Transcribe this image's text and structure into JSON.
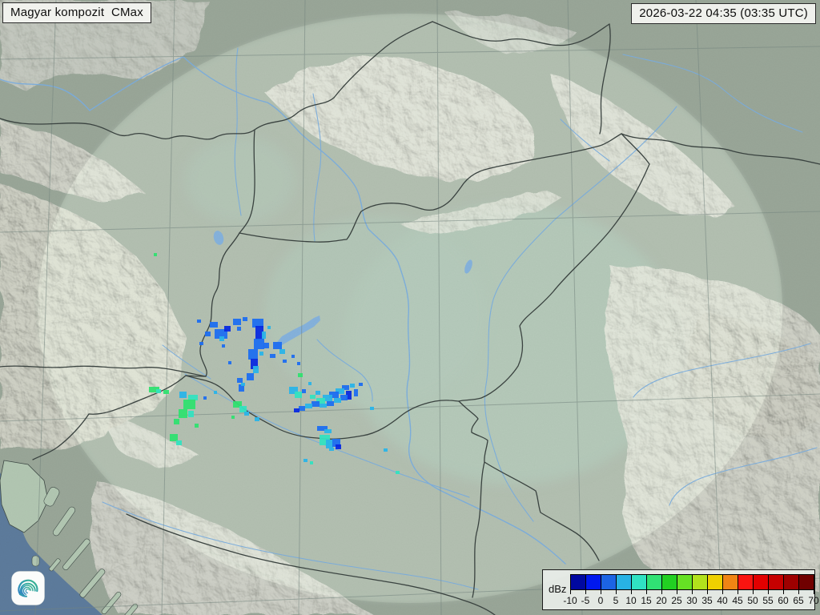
{
  "header": {
    "product_label": "Magyar kompozit  CMax",
    "timestamp_label": "2026-03-22 04:35 (03:35 UTC)"
  },
  "legend": {
    "unit": "dBz",
    "tick_labels": [
      "-10",
      "-5",
      "0",
      "5",
      "10",
      "15",
      "20",
      "25",
      "30",
      "35",
      "40",
      "45",
      "50",
      "55",
      "60",
      "65",
      "70"
    ],
    "colors": [
      "#0008a0",
      "#0018ee",
      "#1c64e4",
      "#28b2e4",
      "#30e2c2",
      "#30e274",
      "#22d022",
      "#66e224",
      "#b2e21c",
      "#eed000",
      "#f08414",
      "#fa1410",
      "#e20000",
      "#c60000",
      "#9e0000",
      "#700000"
    ]
  },
  "branding": {
    "logo_name": "hungaromet-spiral-logo"
  },
  "map_colors": {
    "land_outer": "#a6b2a4",
    "land_inner_tint": "#d6e9d8",
    "outside_shade": "#49544b",
    "plain": "#a9c2b2",
    "mountain": "#e2e1d4",
    "sea": "#5d7b9c",
    "coast_land": "#b2c7b2",
    "lake": "#85b2dc",
    "river": "#7aadde",
    "border": "#3a4340",
    "graticule": "#75867f"
  },
  "radar_echoes": {
    "palette": {
      "b1": "#0a2ae0",
      "b2": "#1e6ef0",
      "c1": "#2ab4e8",
      "t": "#34e2c0",
      "g": "#30e070"
    },
    "cells": [
      [
        246,
        399,
        5,
        4,
        "b2"
      ],
      [
        262,
        402,
        10,
        7,
        "b2"
      ],
      [
        256,
        414,
        7,
        6,
        "b2"
      ],
      [
        268,
        411,
        16,
        12,
        "b2"
      ],
      [
        280,
        407,
        8,
        7,
        "b1"
      ],
      [
        274,
        420,
        6,
        6,
        "c1"
      ],
      [
        291,
        398,
        10,
        8,
        "b2"
      ],
      [
        303,
        396,
        6,
        5,
        "b2"
      ],
      [
        296,
        408,
        5,
        5,
        "b2"
      ],
      [
        249,
        427,
        5,
        4,
        "b2"
      ],
      [
        277,
        430,
        4,
        4,
        "b2"
      ],
      [
        315,
        398,
        14,
        11,
        "b2"
      ],
      [
        319,
        407,
        10,
        17,
        "b1"
      ],
      [
        327,
        414,
        5,
        9,
        "c1"
      ],
      [
        317,
        423,
        13,
        13,
        "b2"
      ],
      [
        329,
        428,
        7,
        7,
        "b2"
      ],
      [
        334,
        407,
        4,
        4,
        "c1"
      ],
      [
        341,
        427,
        11,
        9,
        "b2"
      ],
      [
        349,
        436,
        7,
        6,
        "c1"
      ],
      [
        337,
        442,
        7,
        5,
        "b2"
      ],
      [
        353,
        449,
        5,
        4,
        "b2"
      ],
      [
        324,
        439,
        5,
        5,
        "c1"
      ],
      [
        310,
        436,
        12,
        13,
        "b2"
      ],
      [
        313,
        448,
        9,
        13,
        "b1"
      ],
      [
        316,
        457,
        7,
        9,
        "c1"
      ],
      [
        308,
        466,
        9,
        9,
        "b2"
      ],
      [
        296,
        472,
        7,
        6,
        "b2"
      ],
      [
        298,
        480,
        7,
        9,
        "b2"
      ],
      [
        301,
        478,
        5,
        4,
        "c1"
      ],
      [
        285,
        451,
        4,
        4,
        "b2"
      ],
      [
        364,
        443,
        4,
        4,
        "b2"
      ],
      [
        371,
        452,
        4,
        4,
        "b2"
      ],
      [
        186,
        483,
        13,
        7,
        "g"
      ],
      [
        195,
        486,
        6,
        5,
        "t"
      ],
      [
        204,
        487,
        7,
        5,
        "g"
      ],
      [
        224,
        489,
        9,
        8,
        "c1"
      ],
      [
        235,
        493,
        12,
        7,
        "t"
      ],
      [
        229,
        499,
        15,
        12,
        "g"
      ],
      [
        223,
        511,
        11,
        11,
        "g"
      ],
      [
        235,
        513,
        7,
        8,
        "t"
      ],
      [
        217,
        523,
        7,
        7,
        "g"
      ],
      [
        243,
        529,
        5,
        5,
        "g"
      ],
      [
        212,
        542,
        10,
        9,
        "g"
      ],
      [
        220,
        550,
        7,
        6,
        "t"
      ],
      [
        254,
        495,
        4,
        4,
        "b2"
      ],
      [
        267,
        488,
        4,
        4,
        "c1"
      ],
      [
        192,
        316,
        4,
        4,
        "g"
      ],
      [
        291,
        501,
        11,
        8,
        "g"
      ],
      [
        299,
        507,
        9,
        8,
        "t"
      ],
      [
        305,
        514,
        6,
        5,
        "c1"
      ],
      [
        318,
        521,
        6,
        5,
        "c1"
      ],
      [
        289,
        519,
        4,
        4,
        "g"
      ],
      [
        372,
        466,
        6,
        5,
        "g"
      ],
      [
        361,
        483,
        11,
        9,
        "c1"
      ],
      [
        368,
        489,
        9,
        8,
        "t"
      ],
      [
        377,
        486,
        5,
        5,
        "b2"
      ],
      [
        385,
        477,
        4,
        4,
        "c1"
      ],
      [
        427,
        481,
        9,
        6,
        "b2"
      ],
      [
        437,
        479,
        6,
        5,
        "c1"
      ],
      [
        419,
        485,
        11,
        7,
        "c1"
      ],
      [
        411,
        489,
        12,
        8,
        "b2"
      ],
      [
        403,
        493,
        12,
        8,
        "c1"
      ],
      [
        395,
        497,
        11,
        7,
        "t"
      ],
      [
        389,
        501,
        10,
        7,
        "b2"
      ],
      [
        381,
        504,
        9,
        6,
        "c1"
      ],
      [
        373,
        507,
        8,
        6,
        "b2"
      ],
      [
        367,
        510,
        7,
        5,
        "b1"
      ],
      [
        432,
        488,
        7,
        11,
        "b1"
      ],
      [
        425,
        493,
        9,
        7,
        "b2"
      ],
      [
        417,
        497,
        9,
        6,
        "c1"
      ],
      [
        408,
        501,
        9,
        6,
        "b2"
      ],
      [
        399,
        504,
        9,
        5,
        "c1"
      ],
      [
        442,
        486,
        5,
        9,
        "b2"
      ],
      [
        387,
        493,
        7,
        5,
        "t"
      ],
      [
        394,
        488,
        6,
        5,
        "c1"
      ],
      [
        448,
        478,
        5,
        4,
        "b2"
      ],
      [
        462,
        508,
        5,
        4,
        "c1"
      ],
      [
        396,
        532,
        13,
        6,
        "b2"
      ],
      [
        405,
        536,
        9,
        5,
        "c1"
      ],
      [
        399,
        543,
        13,
        13,
        "t"
      ],
      [
        407,
        549,
        9,
        11,
        "c1"
      ],
      [
        415,
        548,
        10,
        10,
        "b2"
      ],
      [
        419,
        555,
        7,
        6,
        "b1"
      ],
      [
        411,
        559,
        6,
        4,
        "c1"
      ],
      [
        479,
        560,
        5,
        4,
        "c1"
      ],
      [
        379,
        573,
        5,
        4,
        "c1"
      ],
      [
        387,
        576,
        4,
        4,
        "t"
      ],
      [
        494,
        588,
        5,
        4,
        "t"
      ]
    ]
  }
}
